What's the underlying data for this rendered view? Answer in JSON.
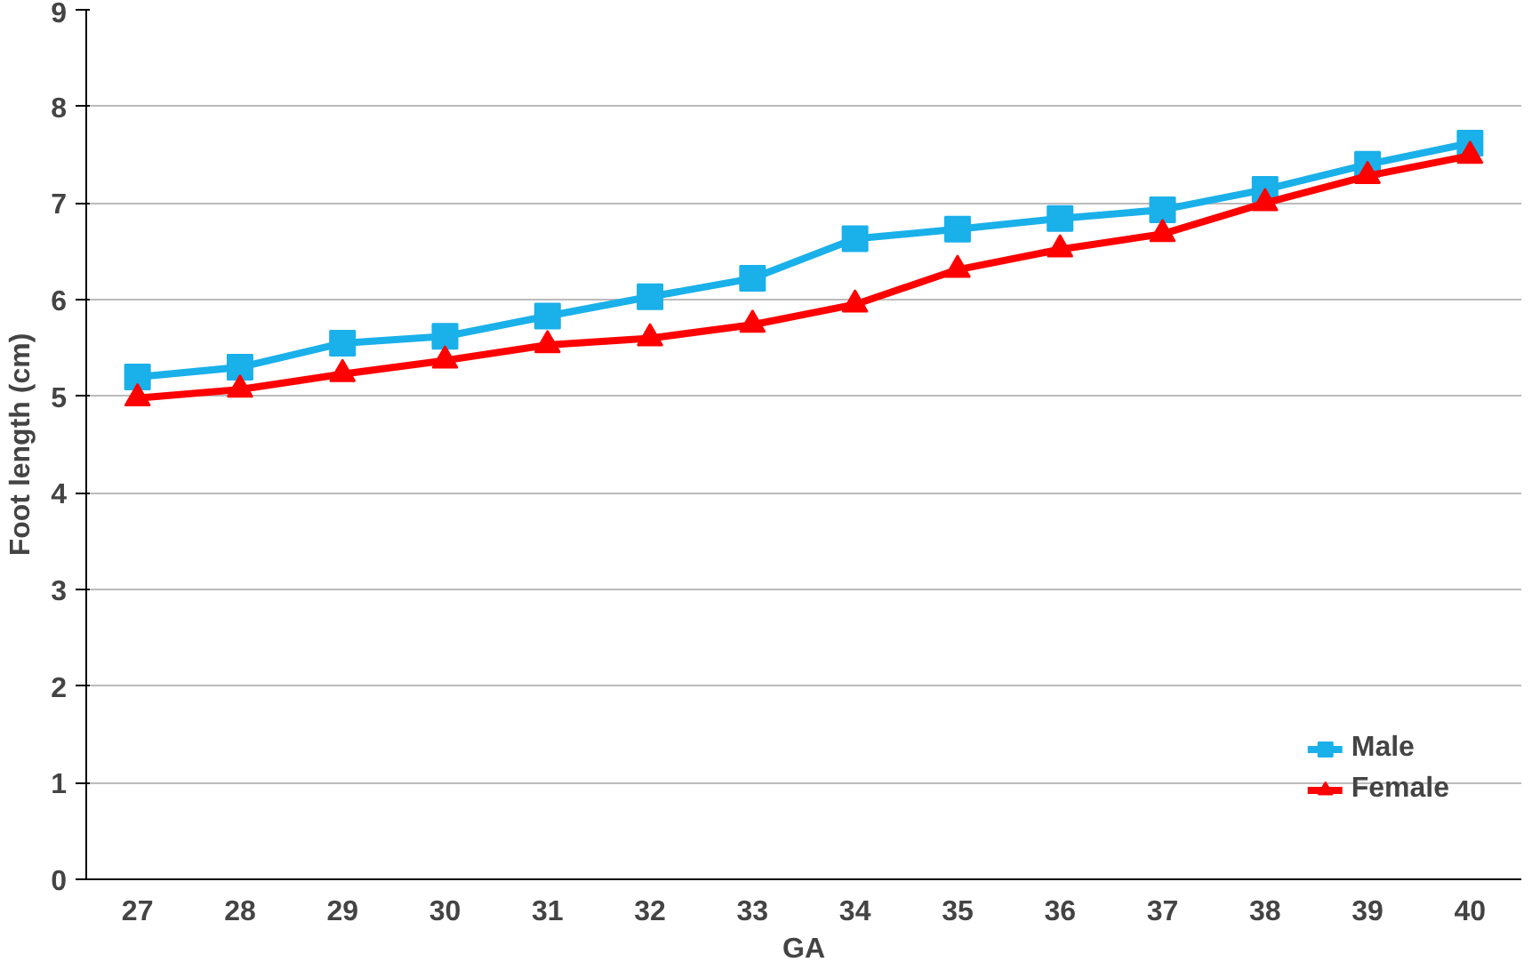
{
  "chart_data": {
    "type": "line",
    "xlabel": "GA",
    "ylabel": "Foot length (cm)",
    "categories": [
      "27",
      "28",
      "29",
      "30",
      "31",
      "32",
      "33",
      "34",
      "35",
      "36",
      "37",
      "38",
      "39",
      "40"
    ],
    "series": [
      {
        "name": "Male",
        "color": "#1ab0ea",
        "marker": "square",
        "values": [
          5.2,
          5.3,
          5.55,
          5.62,
          5.83,
          6.03,
          6.22,
          6.63,
          6.73,
          6.84,
          6.93,
          7.14,
          7.4,
          7.62
        ]
      },
      {
        "name": "Female",
        "color": "#ff0000",
        "marker": "triangle",
        "values": [
          4.98,
          5.07,
          5.23,
          5.37,
          5.53,
          5.6,
          5.74,
          5.95,
          6.31,
          6.52,
          6.68,
          7.0,
          7.28,
          7.49
        ]
      }
    ],
    "ylim": [
      0,
      9
    ],
    "yticks": [
      0,
      1,
      2,
      3,
      4,
      5,
      6,
      7,
      8,
      9
    ],
    "grid": "y",
    "legend": "bottom right"
  }
}
